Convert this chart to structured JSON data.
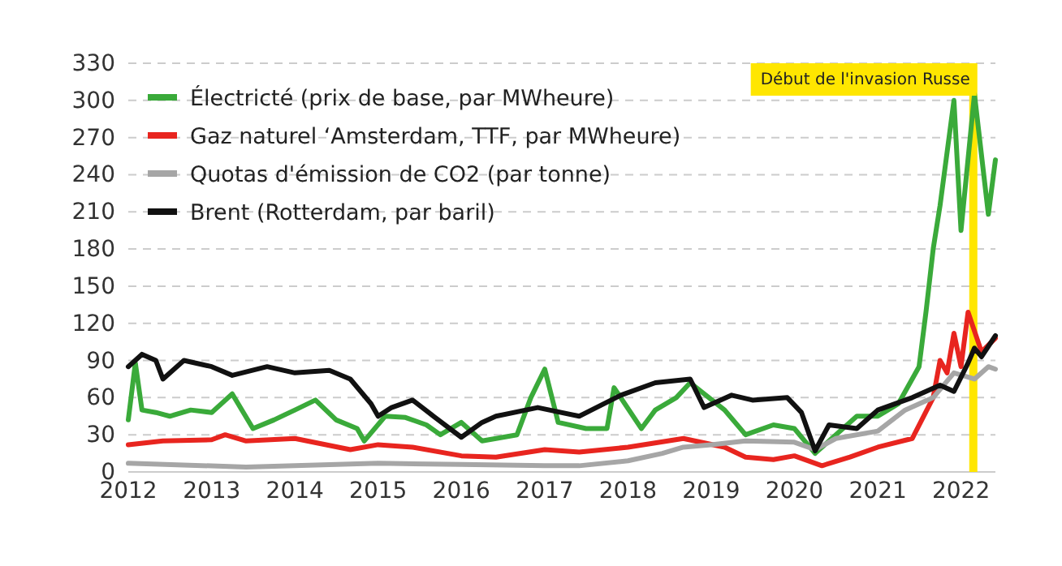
{
  "chart_data": {
    "type": "line",
    "xlim": [
      "2012-01",
      "2022-06"
    ],
    "xticks": [
      {
        "value": "2012",
        "label": "2012"
      },
      {
        "value": "2013",
        "label": "2013"
      },
      {
        "value": "2014",
        "label": "2014"
      },
      {
        "value": "2015",
        "label": "2015"
      },
      {
        "value": "2016",
        "label": "2016"
      },
      {
        "value": "2017",
        "label": "2017"
      },
      {
        "value": "2018",
        "label": "2018"
      },
      {
        "value": "2019",
        "label": "2019"
      },
      {
        "value": "2020",
        "label": "2020"
      },
      {
        "value": "2021",
        "label": "2021"
      },
      {
        "value": "2022",
        "label": "2022"
      }
    ],
    "ylim": [
      0,
      330
    ],
    "yticks": [
      0,
      30,
      60,
      90,
      120,
      150,
      180,
      210,
      240,
      270,
      300,
      330
    ],
    "grid": "y",
    "legend": "top left",
    "line_style": "solid",
    "marker": "none",
    "ref_lines": [
      {
        "axis": "x",
        "value": "2022-02-24",
        "label": "Début de l'invasion Russe",
        "color": "#ffe600"
      }
    ],
    "series": [
      {
        "name": "Électricté (prix de base, par MWheure)",
        "color": "#3aaa3a",
        "x": [
          "2012-01",
          "2012-02",
          "2012-03",
          "2012-05",
          "2012-07",
          "2012-10",
          "2013-01",
          "2013-04",
          "2013-07",
          "2013-10",
          "2014-01",
          "2014-04",
          "2014-07",
          "2014-10",
          "2014-11",
          "2015-02",
          "2015-05",
          "2015-08",
          "2015-10",
          "2016-01",
          "2016-04",
          "2016-09",
          "2016-11",
          "2017-01",
          "2017-03",
          "2017-07",
          "2017-10",
          "2017-11",
          "2018-03",
          "2018-05",
          "2018-08",
          "2018-10",
          "2019-03",
          "2019-06",
          "2019-10",
          "2020-01",
          "2020-04",
          "2020-07",
          "2020-10",
          "2021-01",
          "2021-04",
          "2021-07",
          "2021-08",
          "2021-09",
          "2021-10",
          "2021-12",
          "2022-01",
          "2022-03",
          "2022-05",
          "2022-06"
        ],
        "values": [
          42,
          88,
          50,
          48,
          45,
          50,
          48,
          63,
          35,
          42,
          50,
          58,
          42,
          35,
          25,
          45,
          44,
          38,
          30,
          40,
          25,
          30,
          60,
          83,
          40,
          35,
          35,
          68,
          35,
          50,
          60,
          72,
          50,
          30,
          38,
          35,
          15,
          30,
          45,
          45,
          55,
          85,
          130,
          180,
          215,
          300,
          195,
          305,
          208,
          252
        ]
      },
      {
        "name": "Gaz naturel ‘Amsterdam, TTF, par MWheure)",
        "color": "#e8251f",
        "x": [
          "2012-01",
          "2012-06",
          "2013-01",
          "2013-03",
          "2013-06",
          "2014-01",
          "2014-09",
          "2015-01",
          "2015-06",
          "2016-01",
          "2016-06",
          "2017-01",
          "2017-06",
          "2018-01",
          "2018-09",
          "2019-03",
          "2019-06",
          "2019-10",
          "2020-01",
          "2020-05",
          "2020-09",
          "2021-01",
          "2021-06",
          "2021-09",
          "2021-10",
          "2021-11",
          "2021-12",
          "2022-01",
          "2022-02",
          "2022-04",
          "2022-06"
        ],
        "values": [
          22,
          25,
          26,
          30,
          25,
          27,
          18,
          22,
          20,
          13,
          12,
          18,
          16,
          20,
          27,
          20,
          12,
          10,
          13,
          5,
          12,
          20,
          27,
          60,
          90,
          80,
          112,
          85,
          129,
          97,
          108
        ]
      },
      {
        "name": "Quotas d'émission de CO2 (par tonne)",
        "color": "#a6a6a6",
        "x": [
          "2012-01",
          "2013-06",
          "2015-01",
          "2016-01",
          "2017-01",
          "2017-06",
          "2018-01",
          "2018-06",
          "2018-09",
          "2019-01",
          "2019-06",
          "2020-01",
          "2020-04",
          "2020-07",
          "2021-01",
          "2021-05",
          "2021-09",
          "2021-12",
          "2022-03",
          "2022-05",
          "2022-06"
        ],
        "values": [
          7,
          4,
          7,
          6,
          5,
          5,
          9,
          15,
          20,
          22,
          25,
          24,
          18,
          27,
          33,
          50,
          60,
          80,
          75,
          85,
          83
        ]
      },
      {
        "name": "Brent (Rotterdam, par baril)",
        "color": "#111111",
        "x": [
          "2012-01",
          "2012-03",
          "2012-05",
          "2012-06",
          "2012-09",
          "2013-01",
          "2013-04",
          "2013-09",
          "2014-01",
          "2014-06",
          "2014-09",
          "2014-12",
          "2015-01",
          "2015-03",
          "2015-06",
          "2015-09",
          "2016-01",
          "2016-04",
          "2016-06",
          "2016-12",
          "2017-06",
          "2017-12",
          "2018-05",
          "2018-10",
          "2018-12",
          "2019-04",
          "2019-07",
          "2019-12",
          "2020-02",
          "2020-04",
          "2020-06",
          "2020-10",
          "2021-01",
          "2021-06",
          "2021-10",
          "2021-12",
          "2022-02",
          "2022-03",
          "2022-04",
          "2022-06"
        ],
        "values": [
          85,
          95,
          90,
          75,
          90,
          85,
          78,
          85,
          80,
          82,
          75,
          55,
          45,
          52,
          58,
          45,
          28,
          40,
          45,
          52,
          45,
          62,
          72,
          75,
          52,
          62,
          58,
          60,
          48,
          17,
          38,
          35,
          50,
          60,
          70,
          65,
          88,
          100,
          93,
          110
        ]
      }
    ]
  }
}
